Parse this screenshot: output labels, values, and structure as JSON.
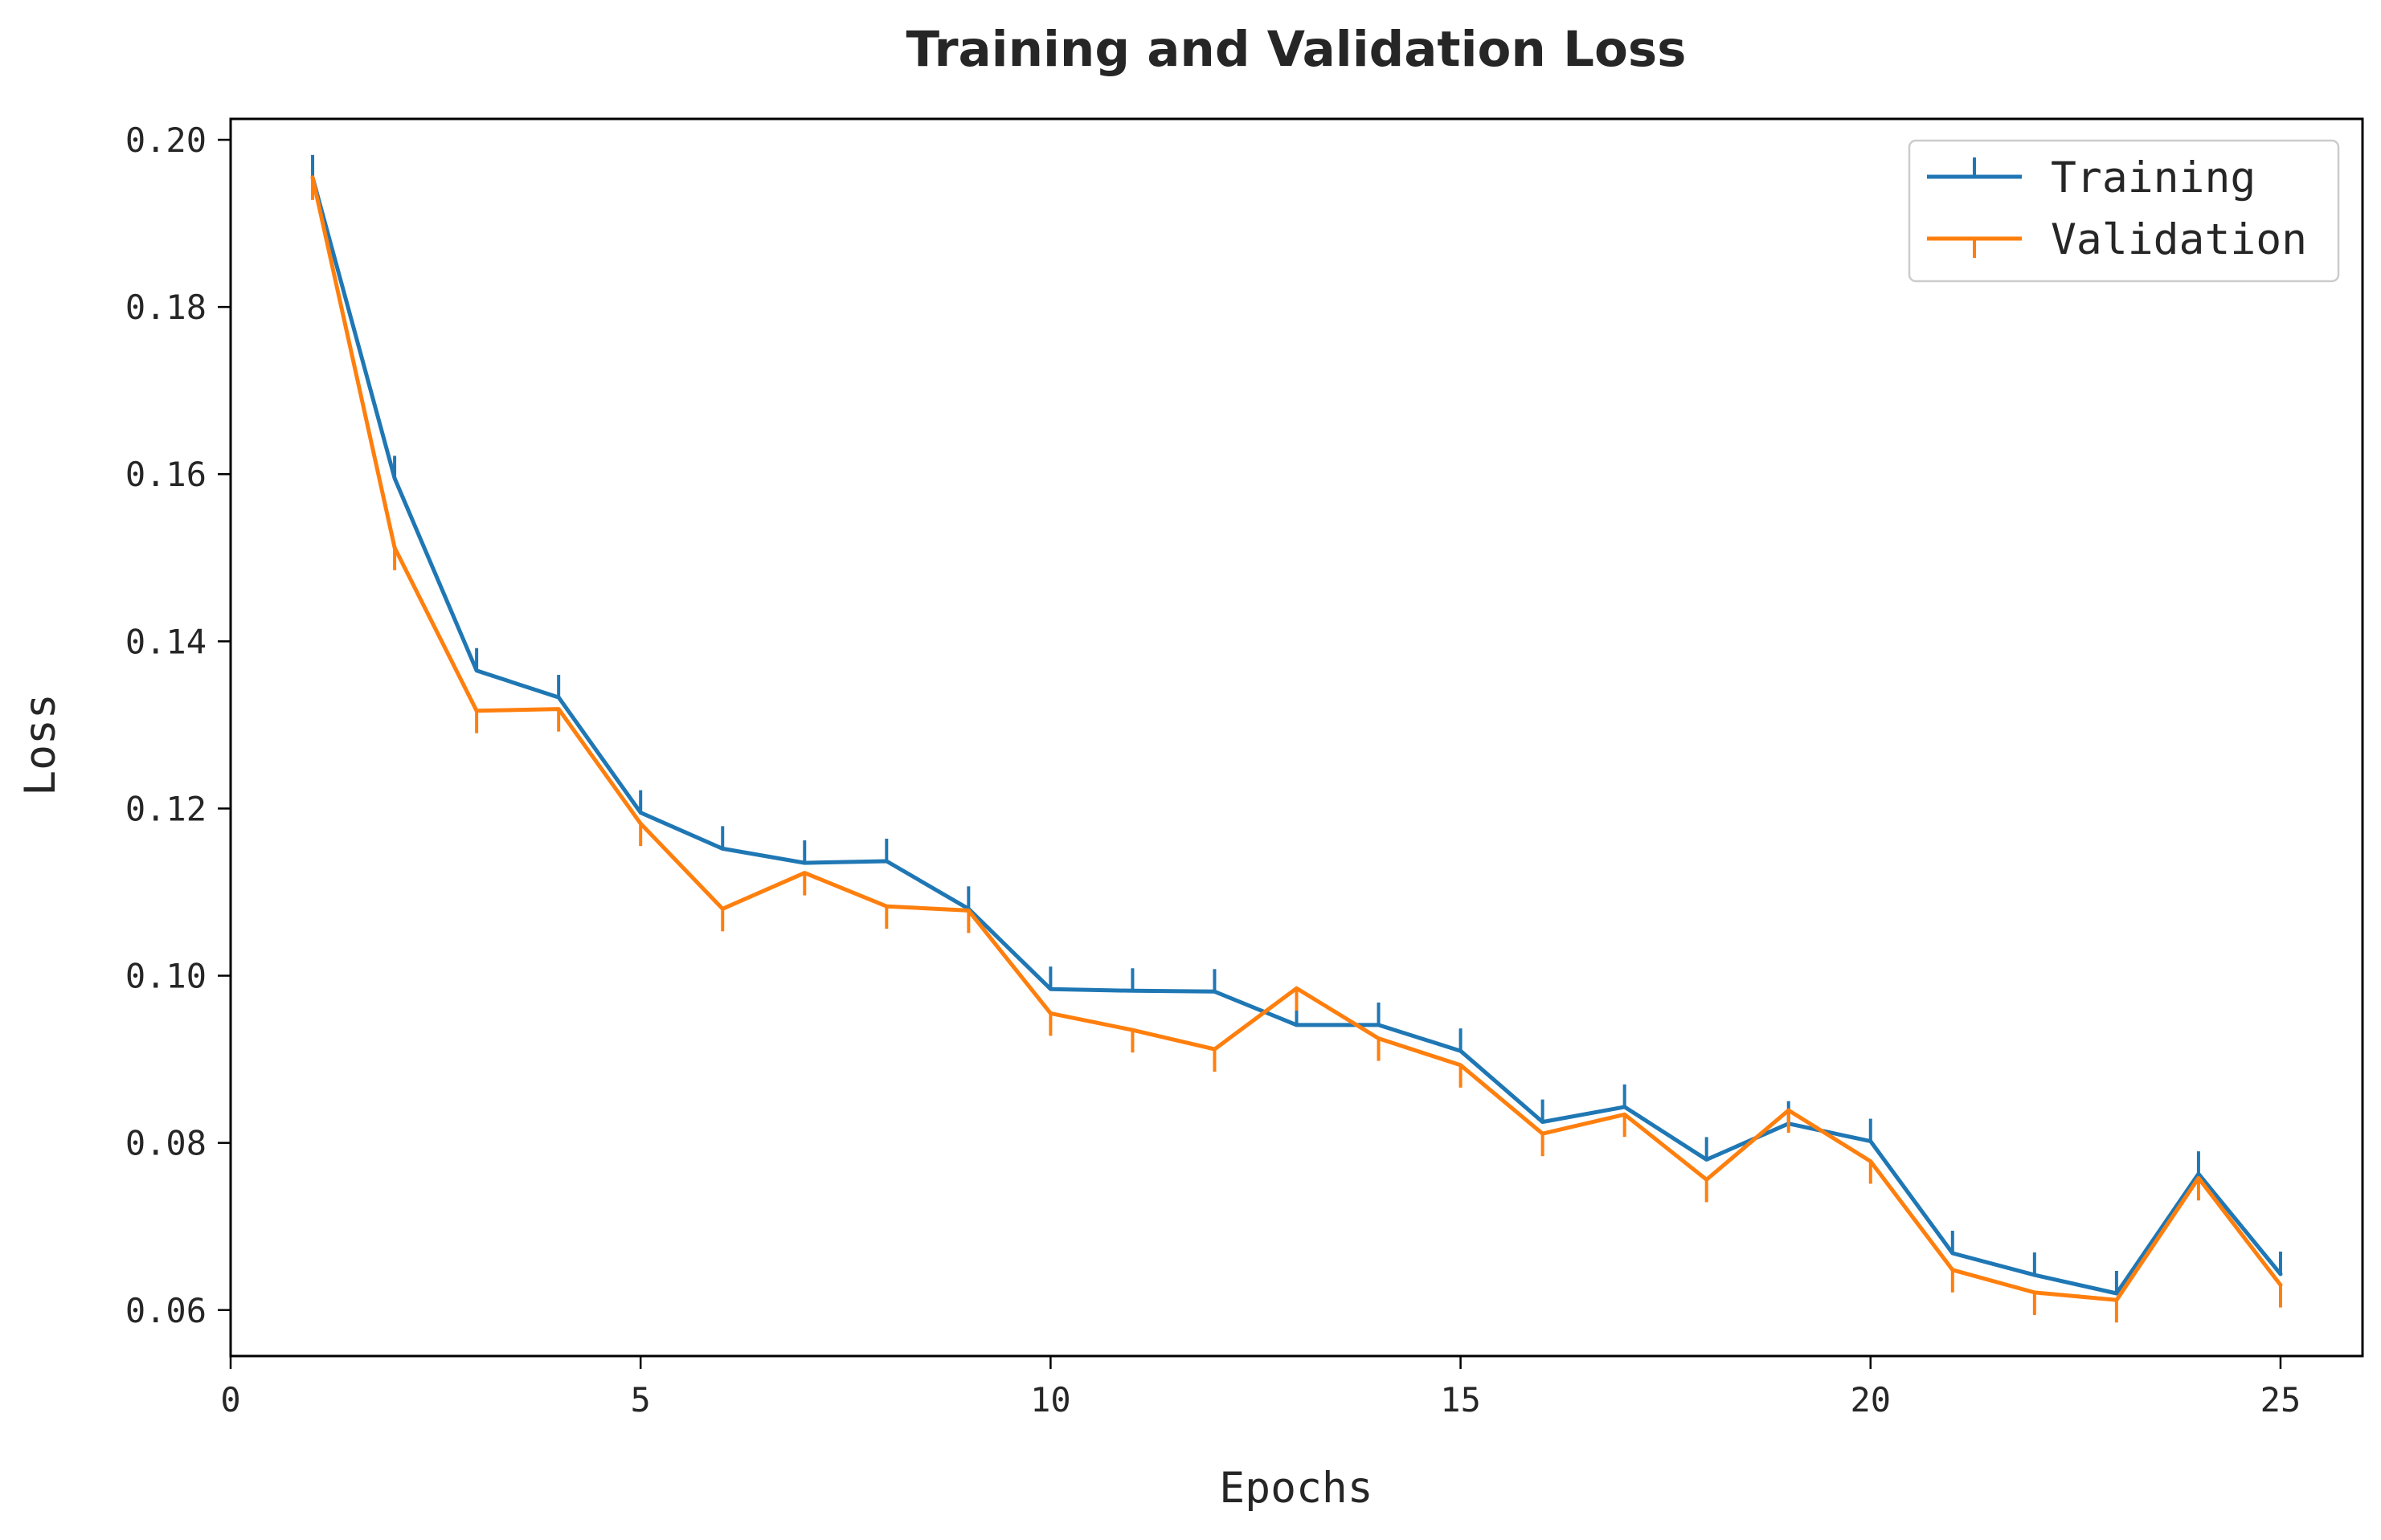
{
  "chart_data": {
    "type": "line",
    "title": "Training and Validation Loss",
    "xlabel": "Epochs",
    "ylabel": "Loss",
    "xlim": [
      0,
      26
    ],
    "ylim": [
      0.0545,
      0.2025
    ],
    "x_ticks": [
      0,
      5,
      10,
      15,
      20,
      25
    ],
    "y_ticks": [
      0.06,
      0.08,
      0.1,
      0.12,
      0.14,
      0.16,
      0.18,
      0.2
    ],
    "x_tick_labels": [
      "0",
      "5",
      "10",
      "15",
      "20",
      "25"
    ],
    "y_tick_labels": [
      "0.06",
      "0.08",
      "0.10",
      "0.12",
      "0.14",
      "0.16",
      "0.18",
      "0.20"
    ],
    "grid": false,
    "legend_position": "top-right",
    "x": [
      1,
      2,
      3,
      4,
      5,
      6,
      7,
      8,
      9,
      10,
      11,
      12,
      13,
      14,
      15,
      16,
      17,
      18,
      19,
      20,
      21,
      22,
      23,
      24,
      25
    ],
    "series": [
      {
        "name": "Training",
        "color": "#1f77b4",
        "marker": "tick-up",
        "values": [
          0.1955,
          0.1595,
          0.1365,
          0.1333,
          0.1195,
          0.1152,
          0.1135,
          0.1137,
          0.108,
          0.0984,
          0.0982,
          0.0981,
          0.0941,
          0.0941,
          0.091,
          0.0825,
          0.0843,
          0.078,
          0.0823,
          0.0802,
          0.0668,
          0.0642,
          0.062,
          0.0763,
          0.0643
        ]
      },
      {
        "name": "Validation",
        "color": "#ff7f0e",
        "marker": "tick-down",
        "values": [
          0.1955,
          0.1512,
          0.1317,
          0.1319,
          0.1182,
          0.108,
          0.1123,
          0.1083,
          0.1078,
          0.0955,
          0.0935,
          0.0912,
          0.0985,
          0.0925,
          0.0893,
          0.0811,
          0.0834,
          0.0756,
          0.0839,
          0.0778,
          0.0648,
          0.0621,
          0.0612,
          0.0758,
          0.063
        ]
      }
    ]
  }
}
